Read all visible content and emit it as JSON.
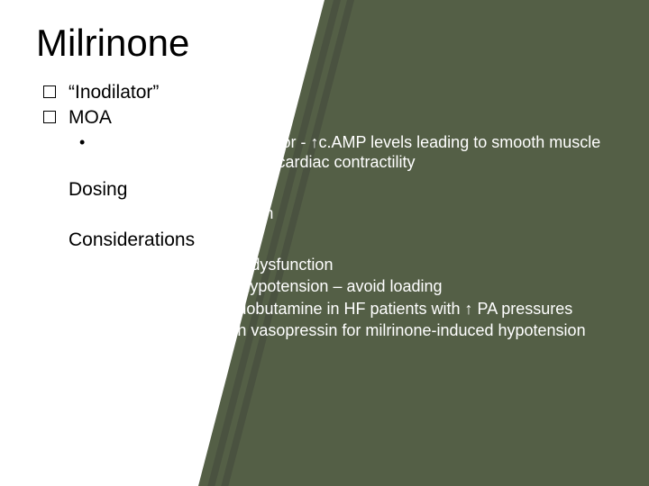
{
  "slide": {
    "title": "Milrinone",
    "background": {
      "left_color": "#ffffff",
      "right_color": "#545f46",
      "strip_color": "#4a5240"
    },
    "typography": {
      "title_fontsize": 42,
      "level1_fontsize": 21,
      "level2_fontsize": 18
    },
    "items": [
      {
        "label": "“Inodilator”",
        "checkbox_color": "#000000",
        "text_color": "#000000",
        "sub": []
      },
      {
        "label": "MOA",
        "checkbox_color": "#000000",
        "text_color": "#000000",
        "sub": [
          {
            "text": "Phosphodiesterase inhibitor - ↑c.AMP levels leading to smooth muscle relaxation and increased cardiac contractility",
            "bullet_color": "#000000",
            "text_color": "#ffffff"
          }
        ]
      },
      {
        "label": "Dosing",
        "checkbox_color": "#ffffff",
        "text_color": "#000000",
        "sub": [
          {
            "text": "0. 25 – 0. 75 mcg/kg/min",
            "bullet_color": "#ffffff",
            "text_color": "#ffffff"
          }
        ]
      },
      {
        "label": "Considerations",
        "checkbox_color": "#ffffff",
        "text_color": "#000000",
        "sub": [
          {
            "text": "Accumulates in renal dysfunction",
            "bullet_color": "#ffffff",
            "text_color": "#ffffff"
          },
          {
            "text": "Clinically significant hypotension – avoid loading",
            "bullet_color": "#ffffff",
            "text_color": "#ffffff"
          },
          {
            "text": "Good alternative to dobutamine in HF patients with ↑ PA pressures",
            "bullet_color": "#ffffff",
            "text_color": "#ffffff"
          },
          {
            "text": "Commonly used with vasopressin for milrinone-induced hypotension",
            "bullet_color": "#ffffff",
            "text_color": "#ffffff"
          }
        ]
      }
    ]
  }
}
